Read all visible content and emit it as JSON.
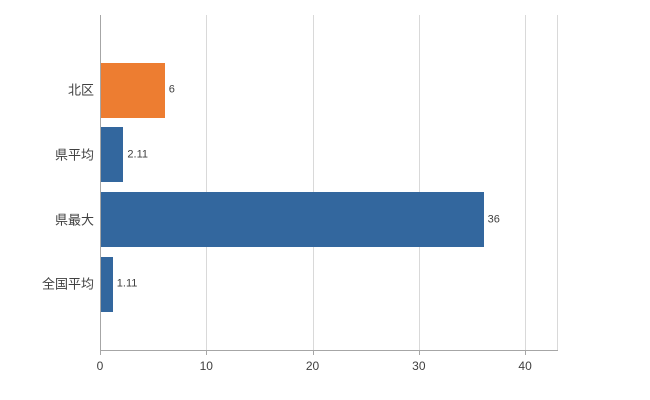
{
  "chart_data": {
    "type": "bar",
    "orientation": "horizontal",
    "title": "",
    "categories": [
      "北区",
      "県平均",
      "県最大",
      "全国平均"
    ],
    "values": [
      6,
      2.11,
      36,
      1.11
    ],
    "value_labels": [
      "6",
      "2.11",
      "36",
      "1.11"
    ],
    "bar_colors": [
      "#ED7D31",
      "#33679E",
      "#33679E",
      "#33679E"
    ],
    "x_ticks": [
      0,
      10,
      20,
      30,
      40
    ],
    "x_tick_labels": [
      "0",
      "10",
      "20",
      "30",
      "40"
    ],
    "xlim": [
      0,
      43
    ],
    "grid": true,
    "legend_position": "none",
    "colors": {
      "orange_bar": "#ED7D31",
      "blue_bar": "#33679E",
      "gridline": "#D9D9D9",
      "axis": "#A6A6A6",
      "text": "#404040"
    }
  }
}
